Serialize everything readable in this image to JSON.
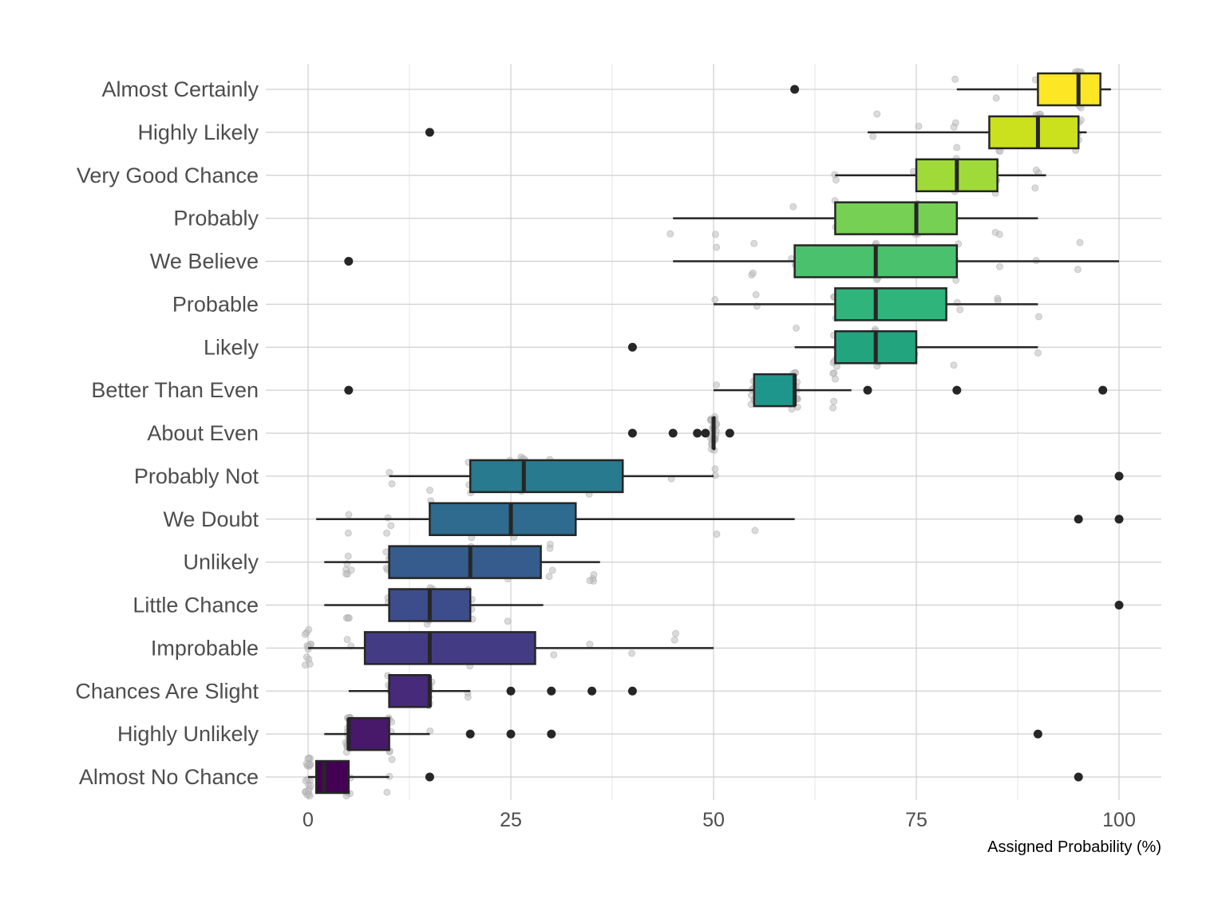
{
  "chart_data": {
    "type": "boxplot",
    "title": "",
    "xlabel": "Assigned Probability (%)",
    "ylabel": "",
    "xlim": [
      0,
      100
    ],
    "x_ticks": [
      0,
      25,
      50,
      75,
      100
    ],
    "grid": true,
    "legend": "none",
    "categories": [
      {
        "label": "Almost Certainly",
        "color": "#FDE725",
        "q1": 90,
        "median": 95,
        "q3": 97.7,
        "whisker_low": 80,
        "whisker_high": 99,
        "outliers": [
          60
        ]
      },
      {
        "label": "Highly Likely",
        "color": "#CBE11E",
        "q1": 84,
        "median": 90,
        "q3": 95,
        "whisker_low": 69,
        "whisker_high": 96,
        "outliers": [
          15
        ]
      },
      {
        "label": "Very Good Chance",
        "color": "#A0DA39",
        "q1": 75,
        "median": 80,
        "q3": 85,
        "whisker_low": 65,
        "whisker_high": 91,
        "outliers": []
      },
      {
        "label": "Probably",
        "color": "#75D054",
        "q1": 65,
        "median": 75,
        "q3": 80,
        "whisker_low": 45,
        "whisker_high": 90,
        "outliers": []
      },
      {
        "label": "We Believe",
        "color": "#4AC16D",
        "q1": 60,
        "median": 70,
        "q3": 80,
        "whisker_low": 45,
        "whisker_high": 100,
        "outliers": [
          5
        ]
      },
      {
        "label": "Probable",
        "color": "#2FB47C",
        "q1": 65,
        "median": 70,
        "q3": 78.7,
        "whisker_low": 50,
        "whisker_high": 90,
        "outliers": []
      },
      {
        "label": "Likely",
        "color": "#22A47F",
        "q1": 65,
        "median": 70,
        "q3": 75,
        "whisker_low": 60,
        "whisker_high": 90,
        "outliers": [
          40
        ]
      },
      {
        "label": "Better Than Even",
        "color": "#1F968B",
        "q1": 55,
        "median": 60,
        "q3": 60,
        "whisker_low": 50,
        "whisker_high": 67,
        "outliers": [
          5,
          69,
          80,
          98
        ]
      },
      {
        "label": "About Even",
        "color": "#23888E",
        "q1": 50,
        "median": 50,
        "q3": 50,
        "whisker_low": 50,
        "whisker_high": 50,
        "outliers": [
          40,
          45,
          48,
          49,
          52
        ]
      },
      {
        "label": "Probably Not",
        "color": "#287A8E",
        "q1": 20,
        "median": 26.6,
        "q3": 38.8,
        "whisker_low": 10,
        "whisker_high": 50,
        "outliers": [
          100
        ]
      },
      {
        "label": "We Doubt",
        "color": "#2E6B8E",
        "q1": 15,
        "median": 25,
        "q3": 33,
        "whisker_low": 1,
        "whisker_high": 60,
        "outliers": [
          95,
          100
        ]
      },
      {
        "label": "Unlikely",
        "color": "#355C8D",
        "q1": 10,
        "median": 20,
        "q3": 28.7,
        "whisker_low": 2,
        "whisker_high": 36,
        "outliers": []
      },
      {
        "label": "Little Chance",
        "color": "#3D4C8A",
        "q1": 10,
        "median": 15,
        "q3": 20,
        "whisker_low": 2,
        "whisker_high": 29,
        "outliers": [
          100
        ]
      },
      {
        "label": "Improbable",
        "color": "#433C84",
        "q1": 7,
        "median": 15,
        "q3": 28,
        "whisker_low": 0,
        "whisker_high": 50,
        "outliers": []
      },
      {
        "label": "Chances Are Slight",
        "color": "#472A79",
        "q1": 10,
        "median": 15,
        "q3": 15,
        "whisker_low": 5,
        "whisker_high": 20,
        "outliers": [
          25,
          30,
          35,
          40
        ]
      },
      {
        "label": "Highly Unlikely",
        "color": "#48186A",
        "q1": 5,
        "median": 5,
        "q3": 10,
        "whisker_low": 2,
        "whisker_high": 15,
        "outliers": [
          20,
          25,
          30,
          90
        ]
      },
      {
        "label": "Almost No Chance",
        "color": "#440154",
        "q1": 1,
        "median": 2,
        "q3": 5,
        "whisker_low": 0,
        "whisker_high": 10,
        "outliers": [
          15,
          95
        ]
      }
    ]
  }
}
